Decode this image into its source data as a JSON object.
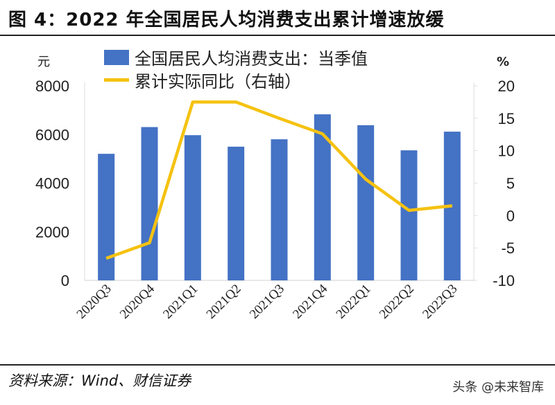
{
  "title": "图 4：2022 年全国居民人均消费支出累计增速放缓",
  "source": "资料来源：Wind、财信证券",
  "watermark": "头条 @未来智库",
  "colors": {
    "bar": "#4472c4",
    "line": "#f5c211"
  },
  "chart_data": {
    "type": "bar+line",
    "categories": [
      "2020Q3",
      "2020Q4",
      "2021Q1",
      "2021Q2",
      "2021Q3",
      "2021Q4",
      "2022Q1",
      "2022Q2",
      "2022Q3"
    ],
    "series": [
      {
        "name": "全国居民人均消费支出：当季值",
        "type": "bar",
        "axis": "left",
        "values": [
          5205,
          6305,
          5972,
          5499,
          5803,
          6829,
          6382,
          5348,
          6117
        ]
      },
      {
        "name": "累计实际同比（右轴）",
        "type": "line",
        "axis": "right",
        "values": [
          -6.6,
          -4.2,
          17.5,
          17.5,
          15.0,
          12.6,
          5.6,
          0.8,
          1.5
        ]
      }
    ],
    "left_axis": {
      "label": "元",
      "ylim": [
        0,
        8000
      ],
      "ticks": [
        0,
        2000,
        4000,
        6000,
        8000
      ]
    },
    "right_axis": {
      "label": "%",
      "ylim": [
        -10,
        20
      ],
      "ticks": [
        -10,
        -5,
        0,
        5,
        10,
        15,
        20
      ]
    },
    "legend": "top"
  }
}
